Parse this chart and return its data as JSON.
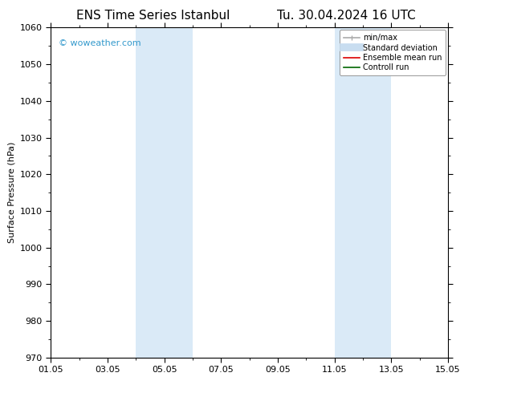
{
  "title_left": "ENS Time Series Istanbul",
  "title_right": "Tu. 30.04.2024 16 UTC",
  "ylabel": "Surface Pressure (hPa)",
  "ylim": [
    970,
    1060
  ],
  "yticks": [
    970,
    980,
    990,
    1000,
    1010,
    1020,
    1030,
    1040,
    1050,
    1060
  ],
  "x_min": 0,
  "x_max": 14,
  "xtick_labels": [
    "01.05",
    "03.05",
    "05.05",
    "07.05",
    "09.05",
    "11.05",
    "13.05",
    "15.05"
  ],
  "xtick_positions": [
    0,
    2,
    4,
    6,
    8,
    10,
    12,
    14
  ],
  "watermark": "© woweather.com",
  "watermark_color": "#3399cc",
  "bg_color": "#ffffff",
  "plot_bg_color": "#ffffff",
  "shaded_bands": [
    {
      "x_start": 3.0,
      "x_end": 5.0,
      "color": "#daeaf7"
    },
    {
      "x_start": 10.0,
      "x_end": 12.0,
      "color": "#daeaf7"
    }
  ],
  "legend_items": [
    {
      "label": "min/max",
      "color": "#aaaaaa",
      "lw": 1.2
    },
    {
      "label": "Standard deviation",
      "color": "#c8ddf0",
      "lw": 7
    },
    {
      "label": "Ensemble mean run",
      "color": "#dd0000",
      "lw": 1.2
    },
    {
      "label": "Controll run",
      "color": "#006600",
      "lw": 1.2
    }
  ],
  "title_fontsize": 11,
  "axis_label_fontsize": 8,
  "tick_fontsize": 8,
  "legend_fontsize": 7,
  "watermark_fontsize": 8
}
